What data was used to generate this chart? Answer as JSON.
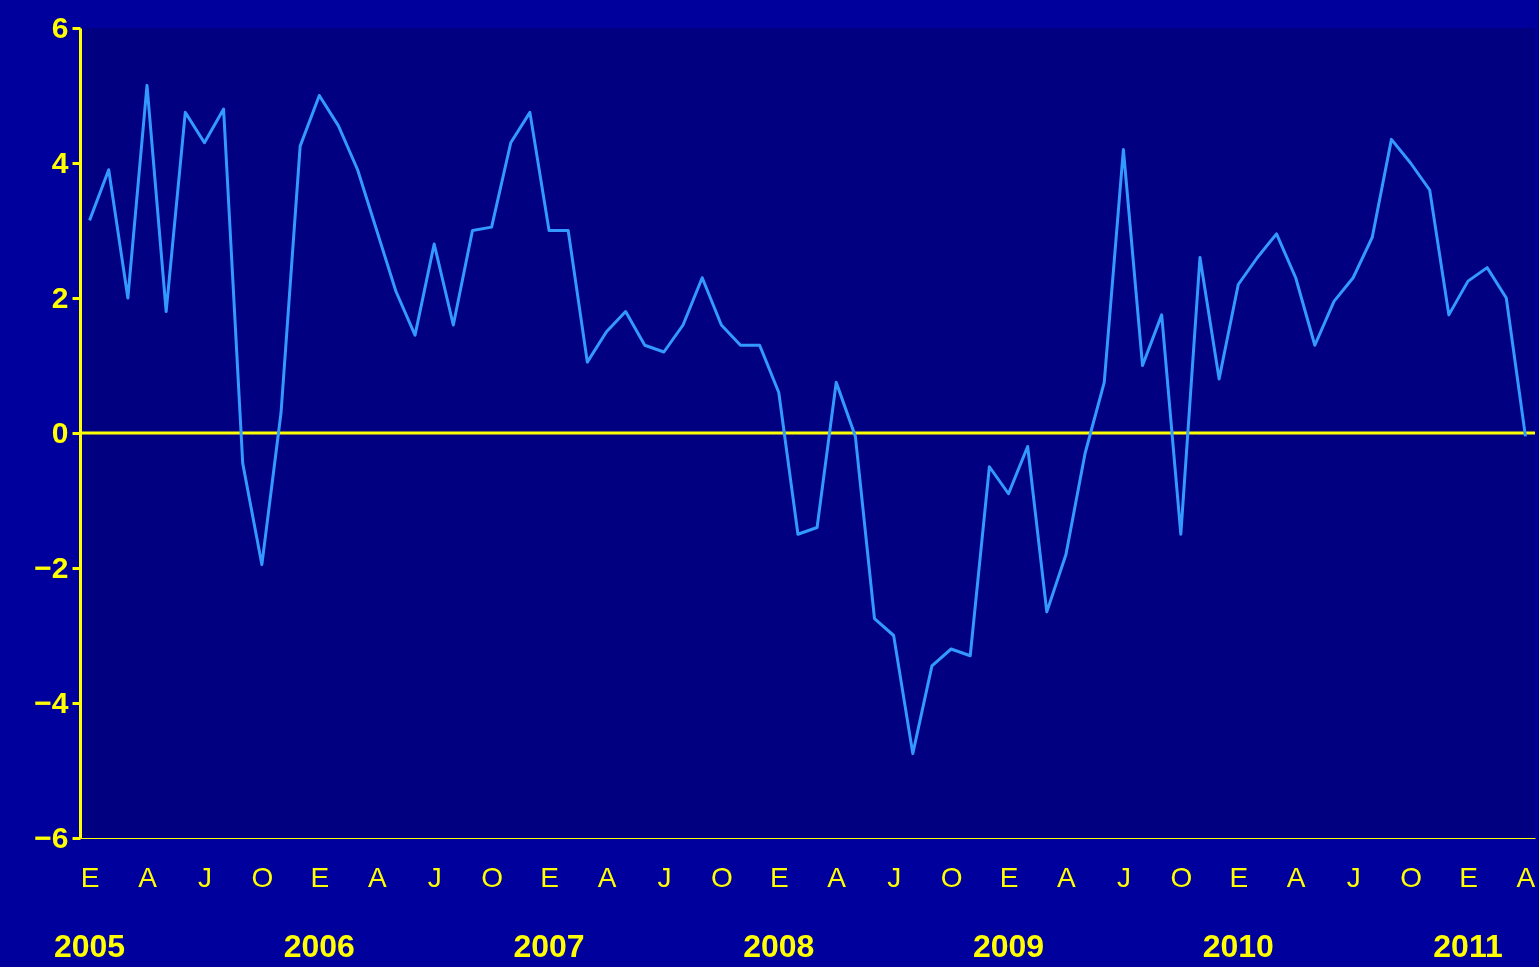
{
  "chart_data": {
    "type": "line",
    "categories": [
      "E",
      null,
      null,
      "A",
      null,
      null,
      "J",
      null,
      null,
      "O",
      null,
      null,
      "E",
      null,
      null,
      "A",
      null,
      null,
      "J",
      null,
      null,
      "O",
      null,
      null,
      "E",
      null,
      null,
      "A",
      null,
      null,
      "J",
      null,
      null,
      "O",
      null,
      null,
      "E",
      null,
      null,
      "A",
      null,
      null,
      "J",
      null,
      null,
      "O",
      null,
      null,
      "E",
      null,
      null,
      "A",
      null,
      null,
      "J",
      null,
      null,
      "O",
      null,
      null,
      "E",
      null,
      null,
      "A",
      null,
      null,
      "J",
      null,
      null,
      "O",
      null,
      null,
      "E",
      null,
      null,
      "A"
    ],
    "series": [
      {
        "color": "#3399ff",
        "values": [
          3.15,
          3.9,
          2.0,
          5.15,
          1.8,
          4.75,
          4.3,
          4.8,
          -0.45,
          -1.95,
          0.3,
          4.25,
          5.0,
          4.55,
          3.9,
          3.0,
          2.1,
          1.45,
          2.8,
          1.6,
          3.0,
          3.05,
          4.3,
          4.75,
          3.0,
          3.0,
          1.05,
          1.5,
          1.8,
          1.3,
          1.2,
          1.6,
          2.3,
          1.6,
          1.3,
          1.3,
          0.6,
          -1.5,
          -1.4,
          0.75,
          -0.05,
          -2.75,
          -3.0,
          -4.75,
          -3.45,
          -3.2,
          -3.3,
          -0.5,
          -0.9,
          -0.2,
          -2.65,
          -1.8,
          -0.3,
          0.75,
          4.2,
          1.0,
          1.75,
          -1.5,
          2.6,
          0.8,
          2.2,
          2.6,
          2.95,
          2.3,
          1.3,
          1.95,
          2.3,
          2.9,
          4.35,
          4.0,
          3.6,
          1.75,
          2.25,
          2.45,
          2.0,
          -0.05
        ]
      }
    ],
    "ylim": [
      -6,
      6
    ],
    "yticks": [
      -6,
      -4,
      -2,
      0,
      2,
      4,
      6
    ],
    "ref_lines": [
      {
        "axis": "y",
        "value": 0,
        "color": "#ffff00"
      }
    ],
    "annotations": [
      "2005",
      "2006",
      "2007",
      "2008",
      "2009",
      "2010",
      "2011"
    ],
    "grid": false,
    "marker": "none",
    "line_style": "solid"
  }
}
